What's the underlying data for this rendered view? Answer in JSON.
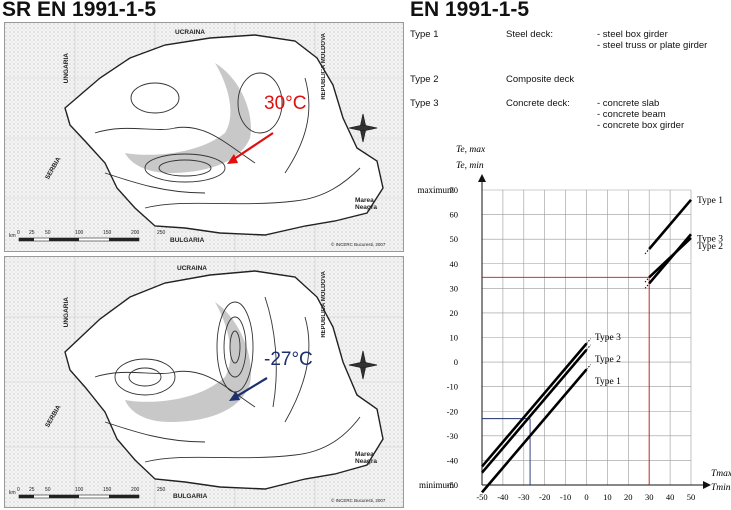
{
  "left_title": "SR EN 1991-1-5",
  "maps": [
    {
      "annotation": "30°C",
      "annotation_color": "#e01010",
      "labels": {
        "ukraine": "UCRAINA",
        "hungary": "UNGARIA",
        "moldova": "REPUBLICA MOLDOVA",
        "serbia": "SERBIA",
        "bulgaria": "BULGARIA",
        "black_sea": "Marea Neagra",
        "credit": "© INCERC Bucuresti, 2007"
      },
      "scale_ticks": [
        "0",
        "25",
        "50",
        "100",
        "150",
        "200",
        "250"
      ],
      "scale_unit": "km"
    },
    {
      "annotation": "-27°C",
      "annotation_color": "#1c2f6e",
      "labels": {
        "ukraine": "UCRAINA",
        "hungary": "UNGARIA",
        "moldova": "REPUBLICA MOLDOVA",
        "serbia": "SERBIA",
        "bulgaria": "BULGARIA",
        "black_sea": "Marea Neagra",
        "credit": "© INCERC Bucuresti, 2007"
      },
      "scale_ticks": [
        "0",
        "25",
        "50",
        "100",
        "150",
        "200",
        "250"
      ],
      "scale_unit": "km"
    }
  ],
  "right_title": "EN 1991-1-5",
  "deck_types": [
    {
      "type": "Type 1",
      "deck": "Steel deck:",
      "items": [
        "- steel box girder",
        "- steel truss or plate girder"
      ]
    },
    {
      "type": "Type 2",
      "deck": "Composite deck",
      "items": []
    },
    {
      "type": "Type 3",
      "deck": "Concrete deck:",
      "items": [
        "- concrete slab",
        "- concrete beam",
        "- concrete box girder"
      ]
    }
  ],
  "chart_data": {
    "type": "line",
    "y_axis_label_top": "Te, max",
    "y_axis_label_bottom": "Te, min",
    "x_axis_label_top": "Tmax",
    "x_axis_label_bottom": "Tmin",
    "xlim": [
      -50,
      50
    ],
    "ylim": [
      -50,
      70
    ],
    "x_ticks": [
      "-50",
      "-40",
      "-30",
      "-20",
      "-10",
      "0",
      "10",
      "20",
      "30",
      "40",
      "50"
    ],
    "y_ticks": [
      "70",
      "60",
      "50",
      "40",
      "30",
      "20",
      "10",
      "0",
      "-10",
      "-20",
      "-30",
      "-40",
      "-50"
    ],
    "y_top_label": "maximum",
    "y_bottom_label": "minimum",
    "grid": true,
    "series": [
      {
        "name": "Type 1",
        "min_segment": {
          "x": [
            -50,
            0
          ],
          "y": [
            -53,
            -3
          ]
        },
        "max_segment": {
          "x": [
            30,
            50
          ],
          "y": [
            46,
            66
          ]
        }
      },
      {
        "name": "Type 2",
        "min_segment": {
          "x": [
            -50,
            0
          ],
          "y": [
            -45,
            5
          ]
        },
        "max_segment": {
          "x": [
            30,
            50
          ],
          "y": [
            34.5,
            50.5
          ]
        }
      },
      {
        "name": "Type 3",
        "min_segment": {
          "x": [
            -50,
            0
          ],
          "y": [
            -42.5,
            7.5
          ]
        },
        "max_segment": {
          "x": [
            30,
            50
          ],
          "y": [
            32,
            52
          ]
        }
      }
    ],
    "left_labels": [
      "Type 3",
      "Type 2",
      "Type 1"
    ],
    "right_labels": [
      "Type 1",
      "Type 2",
      "Type 3"
    ],
    "reference_lines": [
      {
        "color": "#d01010",
        "x": 30,
        "y": 34.5
      },
      {
        "color": "#1c2f6e",
        "x": -27,
        "y": -23
      }
    ]
  }
}
